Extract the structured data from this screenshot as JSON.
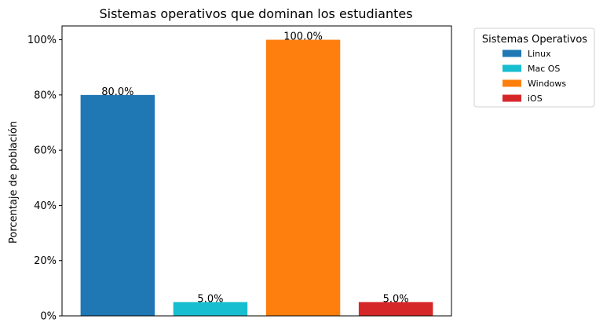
{
  "chart_data": {
    "type": "bar",
    "title": "Sistemas operativos que dominan los estudiantes",
    "xlabel": "",
    "ylabel": "Porcentaje de población",
    "ylim": [
      0,
      105
    ],
    "y_ticks": [
      0,
      20,
      40,
      60,
      80,
      100
    ],
    "y_tick_labels": [
      "0%",
      "20%",
      "40%",
      "60%",
      "80%",
      "100%"
    ],
    "categories": [
      "Linux",
      "Mac OS",
      "Windows",
      "iOS"
    ],
    "values": [
      80,
      5,
      100,
      5
    ],
    "data_labels": [
      "80.0%",
      "5.0%",
      "100.0%",
      "5.0%"
    ],
    "colors": [
      "#1f77b4",
      "#17becf",
      "#ff7f0e",
      "#d62728"
    ],
    "grid": false,
    "legend": {
      "title": "Sistemas Operativos",
      "placement": "outside-upper-right",
      "entries": [
        "Linux",
        "Mac OS",
        "Windows",
        "iOS"
      ]
    }
  }
}
